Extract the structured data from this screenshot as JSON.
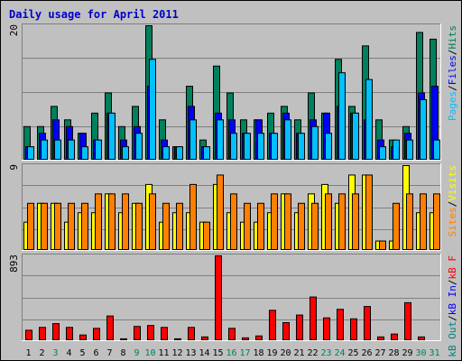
{
  "title": "Daily usage for April 2011",
  "days": [
    "1",
    "2",
    "3",
    "4",
    "5",
    "6",
    "7",
    "8",
    "9",
    "10",
    "11",
    "12",
    "13",
    "14",
    "15",
    "16",
    "17",
    "18",
    "19",
    "20",
    "21",
    "22",
    "23",
    "24",
    "25",
    "26",
    "27",
    "28",
    "29",
    "30",
    "31"
  ],
  "weekend_days": [
    "3",
    "9",
    "10",
    "16",
    "17",
    "23",
    "24",
    "30",
    "31"
  ],
  "colors": {
    "background": "#c0c0c0",
    "plot": "#c0c0c0",
    "title": "#0000cc",
    "hits": "#00805c",
    "files": "#0000ff",
    "pages": "#00c0ff",
    "visits": "#ffff00",
    "sites": "#ff8000",
    "kb_out": "#008080",
    "kb_in": "#0000ff",
    "kb_f": "#ff0000",
    "weekday_label": "#000000",
    "weekend_label": "#00805c"
  },
  "chart_data": [
    {
      "type": "bar",
      "y_max_label": "20",
      "axis_labels": [
        {
          "text": "Hits",
          "key": "hits"
        },
        {
          "text": "Files",
          "key": "files"
        },
        {
          "text": "Pages",
          "key": "pages"
        }
      ],
      "ylim": [
        0,
        20
      ],
      "series": [
        {
          "name": "Hits",
          "values": [
            5,
            5,
            8,
            6,
            4,
            7,
            10,
            5,
            8,
            20,
            6,
            2,
            11,
            3,
            14,
            10,
            6,
            6,
            7,
            8,
            6,
            10,
            7,
            15,
            8,
            17,
            6,
            3,
            5,
            19,
            18
          ]
        },
        {
          "name": "Files",
          "values": [
            2,
            4,
            6,
            5,
            4,
            3,
            7,
            3,
            5,
            11,
            3,
            2,
            8,
            2,
            7,
            6,
            4,
            6,
            4,
            7,
            4,
            6,
            7,
            8,
            7,
            6,
            3,
            2,
            4,
            10,
            11
          ]
        },
        {
          "name": "Pages",
          "values": [
            2,
            3,
            3,
            3,
            2,
            3,
            7,
            2,
            4,
            15,
            2,
            2,
            6,
            2,
            6,
            4,
            4,
            4,
            4,
            6,
            4,
            5,
            4,
            13,
            7,
            12,
            2,
            3,
            3,
            9,
            3
          ]
        }
      ]
    },
    {
      "type": "bar",
      "y_max_label": "9",
      "axis_labels": [
        {
          "text": "Visits",
          "key": "visits"
        },
        {
          "text": "Sites",
          "key": "sites"
        }
      ],
      "ylim": [
        0,
        9
      ],
      "series": [
        {
          "name": "Visits",
          "values": [
            3,
            5,
            5,
            3,
            4,
            4,
            6,
            4,
            5,
            7,
            3,
            4,
            4,
            3,
            7,
            4,
            3,
            3,
            4,
            6,
            4,
            6,
            7,
            5,
            8,
            8,
            1,
            1,
            9,
            4,
            4
          ]
        },
        {
          "name": "Sites",
          "values": [
            5,
            5,
            5,
            5,
            5,
            6,
            6,
            6,
            5,
            6,
            5,
            5,
            7,
            3,
            8,
            6,
            5,
            5,
            6,
            6,
            5,
            5,
            6,
            6,
            6,
            8,
            1,
            5,
            6,
            6,
            6
          ]
        }
      ]
    },
    {
      "type": "bar",
      "y_max_label": "893",
      "axis_labels": [
        {
          "text": "kB F",
          "key": "kb_f"
        },
        {
          "text": "kB In",
          "key": "kb_in"
        },
        {
          "text": "kB Out",
          "key": "kb_out"
        }
      ],
      "ylim": [
        0,
        893
      ],
      "series": [
        {
          "name": "kB F",
          "values": [
            110,
            140,
            180,
            140,
            60,
            130,
            260,
            20,
            150,
            160,
            140,
            20,
            140,
            40,
            893,
            130,
            30,
            50,
            320,
            190,
            270,
            460,
            240,
            330,
            230,
            360,
            40,
            70,
            400,
            40,
            0
          ]
        }
      ]
    }
  ]
}
